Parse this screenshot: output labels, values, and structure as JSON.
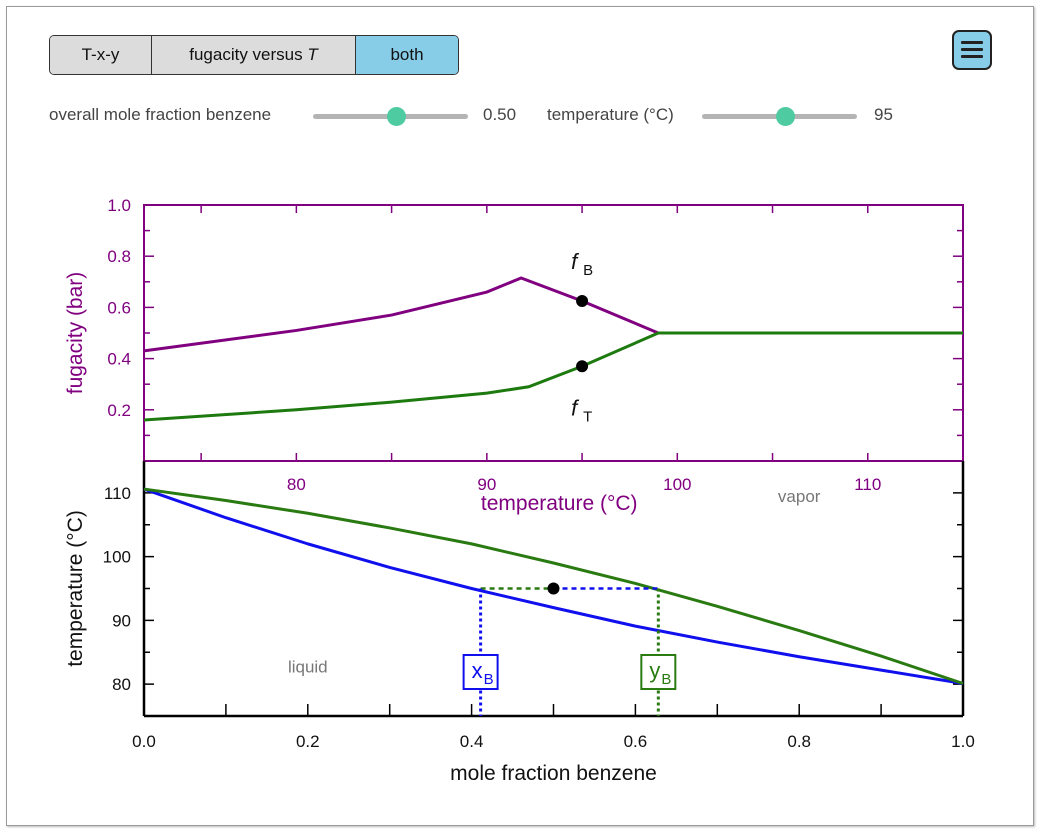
{
  "tabs": [
    {
      "label": "T-x-y",
      "active": false
    },
    {
      "label": "fugacity versus",
      "label_italic": "T",
      "active": false
    },
    {
      "label": "both",
      "active": true
    }
  ],
  "menu_icon": "hamburger-menu-icon",
  "controls": {
    "mole_fraction": {
      "label": "overall mole fraction benzene",
      "value": 0.5,
      "value_text": "0.50",
      "min": 0,
      "max": 1
    },
    "temperature": {
      "label": "temperature (°C)",
      "value": 95,
      "value_text": "95",
      "min": 75,
      "max": 115
    }
  },
  "colors": {
    "fugacity_axis": "#800080",
    "benzene": "#800080",
    "toluene": "#1d7a0f",
    "liquid_line": "#1010ee",
    "vapor_line": "#2a7a12",
    "accent": "#87cde8",
    "slider_thumb": "#4ecba1"
  },
  "chart_data": [
    {
      "type": "line",
      "xlabel": "temperature (°C)",
      "ylabel": "fugacity (bar)",
      "xlim": [
        72,
        115
      ],
      "ylim": [
        0,
        1.0
      ],
      "xticks": [
        80,
        90,
        100,
        110
      ],
      "yticks": [
        0.2,
        0.4,
        0.6,
        0.8,
        1.0
      ],
      "series": [
        {
          "name": "f",
          "subscript": "B",
          "color": "#800080",
          "x": [
            72,
            80,
            85,
            90,
            91.8,
            95,
            99,
            100,
            105,
            110,
            115
          ],
          "y": [
            0.43,
            0.51,
            0.57,
            0.66,
            0.715,
            0.625,
            0.5,
            0.5,
            0.5,
            0.5,
            0.5
          ]
        },
        {
          "name": "f",
          "subscript": "T",
          "color": "#1d7a0f",
          "x": [
            72,
            80,
            85,
            90,
            92.2,
            95,
            99,
            100,
            105,
            110,
            115
          ],
          "y": [
            0.16,
            0.2,
            0.23,
            0.265,
            0.29,
            0.37,
            0.5,
            0.5,
            0.5,
            0.5,
            0.5
          ]
        }
      ],
      "points": [
        {
          "x": 95,
          "y": 0.625,
          "label": "f",
          "subscript": "B"
        },
        {
          "x": 95,
          "y": 0.37,
          "label": "f",
          "subscript": "T"
        }
      ]
    },
    {
      "type": "line",
      "xlabel": "mole fraction benzene",
      "ylabel": "temperature (°C)",
      "xlim": [
        0,
        1
      ],
      "ylim": [
        75,
        115
      ],
      "xticks": [
        0.0,
        0.2,
        0.4,
        0.6,
        0.8,
        1.0
      ],
      "yticks": [
        80,
        90,
        100,
        110
      ],
      "series": [
        {
          "name": "bubble",
          "color": "#1010ee",
          "x": [
            0,
            0.1,
            0.2,
            0.3,
            0.4,
            0.5,
            0.6,
            0.7,
            0.8,
            0.9,
            1.0
          ],
          "y": [
            110.6,
            106.1,
            102.0,
            98.3,
            95.0,
            92.0,
            89.1,
            86.6,
            84.3,
            82.2,
            80.1
          ]
        },
        {
          "name": "dew",
          "color": "#2a7a12",
          "x": [
            0,
            0.1,
            0.2,
            0.3,
            0.4,
            0.5,
            0.6,
            0.7,
            0.8,
            0.9,
            1.0
          ],
          "y": [
            110.6,
            108.8,
            106.8,
            104.5,
            102.0,
            99.0,
            95.8,
            92.2,
            88.4,
            84.4,
            80.1
          ]
        }
      ],
      "state_point": {
        "x": 0.5,
        "y": 95
      },
      "x_B": 0.411,
      "y_B": 0.628,
      "region_labels": {
        "liquid": "liquid",
        "vapor": "vapor"
      },
      "markers": {
        "x": "x",
        "y": "y",
        "subscript": "B"
      }
    }
  ]
}
